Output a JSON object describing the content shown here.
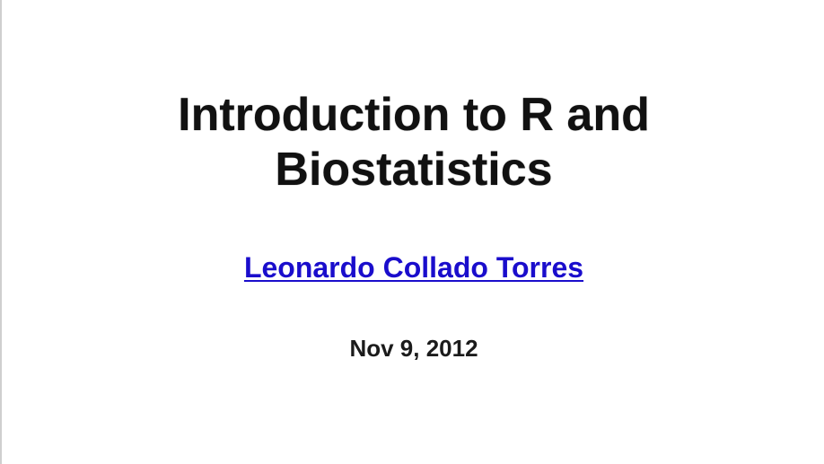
{
  "slide": {
    "title_line1": "Introduction to R and",
    "title_line2": "Biostatistics",
    "author": "Leonardo Collado Torres",
    "date": "Nov 9, 2012"
  },
  "colors": {
    "link": "#1a0dcc",
    "text": "#111111",
    "background": "#ffffff"
  }
}
